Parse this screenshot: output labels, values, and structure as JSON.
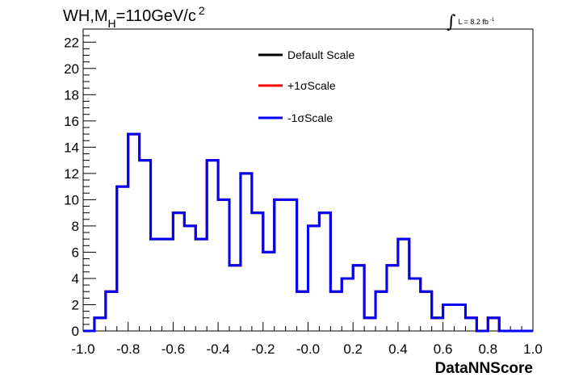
{
  "title": {
    "prefix": "WH,M",
    "subscript": "H",
    "suffix": "=110GeV/c",
    "superscript": "2"
  },
  "luminosity": {
    "integral_symbol": "∫",
    "text": "L = 8.2 fb",
    "superscript": "-1"
  },
  "colors": {
    "default": "#000000",
    "plus": "#ff0000",
    "minus": "#0000ff"
  },
  "chart_data": {
    "type": "line",
    "style": "step-histogram",
    "xlabel": "DataNNScore",
    "ylabel": "",
    "xlim": [
      -1.0,
      1.0
    ],
    "ylim": [
      0,
      23
    ],
    "x_ticks": [
      "-1.0",
      "-0.8",
      "-0.6",
      "-0.4",
      "-0.2",
      "-0.0",
      "0.2",
      "0.4",
      "0.6",
      "0.8",
      "1.0"
    ],
    "y_ticks": [
      "0",
      "2",
      "4",
      "6",
      "8",
      "10",
      "12",
      "14",
      "16",
      "18",
      "20",
      "22"
    ],
    "bin_edges": [
      -1.0,
      -0.95,
      -0.9,
      -0.85,
      -0.8,
      -0.75,
      -0.7,
      -0.65,
      -0.6,
      -0.55,
      -0.5,
      -0.45,
      -0.4,
      -0.35,
      -0.3,
      -0.25,
      -0.2,
      -0.15,
      -0.1,
      -0.05,
      0.0,
      0.05,
      0.1,
      0.15,
      0.2,
      0.25,
      0.3,
      0.35,
      0.4,
      0.45,
      0.5,
      0.55,
      0.6,
      0.65,
      0.7,
      0.75,
      0.8,
      0.85,
      0.9,
      0.95,
      1.0
    ],
    "series": [
      {
        "name": "Default Scale",
        "color": "#000000",
        "values": [
          0,
          1,
          3,
          11,
          15,
          13,
          7,
          7,
          9,
          8,
          7,
          13,
          10,
          5,
          12,
          9,
          6,
          10,
          10,
          3,
          8,
          9,
          3,
          4,
          5,
          1,
          3,
          5,
          7,
          4,
          3,
          1,
          2,
          2,
          1,
          0,
          1,
          0,
          0,
          0
        ]
      },
      {
        "name": "+1σScale",
        "color": "#ff0000",
        "values": [
          0,
          1,
          3,
          11,
          15,
          13,
          7,
          7,
          9,
          8,
          7,
          13,
          10,
          5,
          12,
          9,
          6,
          10,
          10,
          3,
          8,
          9,
          3,
          4,
          5,
          1,
          3,
          5,
          7,
          4,
          3,
          1,
          2,
          2,
          1,
          0,
          1,
          0,
          0,
          0
        ]
      },
      {
        "name": "-1σScale",
        "color": "#0000ff",
        "values": [
          0,
          1,
          3,
          11,
          15,
          13,
          7,
          7,
          9,
          8,
          7,
          13,
          10,
          5,
          12,
          9,
          6,
          10,
          10,
          3,
          8,
          9,
          3,
          4,
          5,
          1,
          3,
          5,
          7,
          4,
          3,
          1,
          2,
          2,
          1,
          0,
          1,
          0,
          0,
          0
        ]
      }
    ],
    "legend_placement": "top-center",
    "grid": false
  }
}
